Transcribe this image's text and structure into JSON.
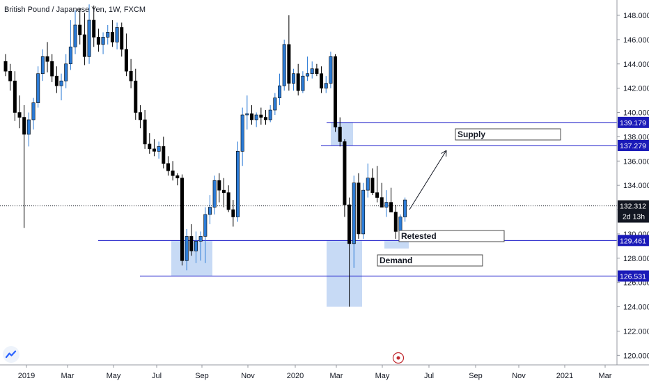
{
  "header": {
    "symbol": "British Pound / Japanese Yen",
    "interval": "1W",
    "exchange": "FXCM"
  },
  "colors": {
    "up_candle": "#2b7bd6",
    "down_candle": "#000000",
    "zone_fill": "#b9d1f3",
    "level_line": "#1818c8",
    "level_tag_bg": "#1a1ab8",
    "price_tag_bg": "#131722",
    "alert_color": "#c0272d"
  },
  "icons": {
    "logo": "tradingview-logo-icon",
    "alert": "alert-clock-icon"
  },
  "chart_data": {
    "type": "candlestick",
    "title": "British Pound / Japanese Yen, 1W, FXCM",
    "ylim": [
      119.4,
      149.3
    ],
    "y_ticks": [
      120,
      122,
      124,
      126,
      128,
      130,
      132,
      134,
      136,
      138,
      140,
      142,
      144,
      146,
      148
    ],
    "y_tick_labels": [
      "120.000",
      "122.000",
      "124.000",
      "126.000",
      "128.000",
      "130.000",
      "132.000",
      "134.000",
      "136.000",
      "138.000",
      "140.000",
      "142.000",
      "144.000",
      "146.000",
      "148.000"
    ],
    "x_labels": [
      "2019",
      "Mar",
      "May",
      "Jul",
      "Sep",
      "Nov",
      "2020",
      "Mar",
      "May",
      "Jul",
      "Sep",
      "Nov",
      "2021",
      "Mar"
    ],
    "candles": [
      [
        144.2,
        144.8,
        143.0,
        143.4
      ],
      [
        143.4,
        144.0,
        141.8,
        142.6
      ],
      [
        142.6,
        143.4,
        139.3,
        140.0
      ],
      [
        140.0,
        141.4,
        138.7,
        139.6
      ],
      [
        139.6,
        140.6,
        130.5,
        138.2
      ],
      [
        138.2,
        140.0,
        137.2,
        139.4
      ],
      [
        139.4,
        141.2,
        138.6,
        140.8
      ],
      [
        140.8,
        143.8,
        140.4,
        143.2
      ],
      [
        143.2,
        145.2,
        142.6,
        144.6
      ],
      [
        144.6,
        145.8,
        143.3,
        144.2
      ],
      [
        144.2,
        144.8,
        142.5,
        143.0
      ],
      [
        143.0,
        143.8,
        141.6,
        142.2
      ],
      [
        142.2,
        143.2,
        141.0,
        142.6
      ],
      [
        142.6,
        144.8,
        142.0,
        144.0
      ],
      [
        144.0,
        147.6,
        143.5,
        145.4
      ],
      [
        145.4,
        148.4,
        144.8,
        147.2
      ],
      [
        147.2,
        148.6,
        145.6,
        146.4
      ],
      [
        146.4,
        148.2,
        143.9,
        144.6
      ],
      [
        144.6,
        148.9,
        144.0,
        147.6
      ],
      [
        147.6,
        148.8,
        145.4,
        146.2
      ],
      [
        146.2,
        146.9,
        145.0,
        145.6
      ],
      [
        145.6,
        146.6,
        144.8,
        146.2
      ],
      [
        146.2,
        147.2,
        145.6,
        146.6
      ],
      [
        146.6,
        147.6,
        145.4,
        145.8
      ],
      [
        145.8,
        147.4,
        145.2,
        147.0
      ],
      [
        147.0,
        147.4,
        144.6,
        145.2
      ],
      [
        145.2,
        146.5,
        143.0,
        143.4
      ],
      [
        143.4,
        144.4,
        142.0,
        142.6
      ],
      [
        142.6,
        143.6,
        139.4,
        140.0
      ],
      [
        140.0,
        140.6,
        138.7,
        139.4
      ],
      [
        139.4,
        140.2,
        137.0,
        137.4
      ],
      [
        137.4,
        138.3,
        136.6,
        137.0
      ],
      [
        137.0,
        137.8,
        136.4,
        136.8
      ],
      [
        136.8,
        137.6,
        136.2,
        137.2
      ],
      [
        137.2,
        138.0,
        135.4,
        135.8
      ],
      [
        135.8,
        136.4,
        134.8,
        135.2
      ],
      [
        135.2,
        136.0,
        134.4,
        134.8
      ],
      [
        134.8,
        135.0,
        134.0,
        134.6
      ],
      [
        134.6,
        134.9,
        127.4,
        127.8
      ],
      [
        127.8,
        130.4,
        127.0,
        129.8
      ],
      [
        129.8,
        130.8,
        128.2,
        128.6
      ],
      [
        128.6,
        130.2,
        127.6,
        129.4
      ],
      [
        129.4,
        130.2,
        127.8,
        129.8
      ],
      [
        129.8,
        132.2,
        127.6,
        131.6
      ],
      [
        131.6,
        133.2,
        130.8,
        132.2
      ],
      [
        132.2,
        134.8,
        131.6,
        134.4
      ],
      [
        134.4,
        135.0,
        132.6,
        133.6
      ],
      [
        133.6,
        134.6,
        132.2,
        133.4
      ],
      [
        133.4,
        134.0,
        131.8,
        132.0
      ],
      [
        132.0,
        132.8,
        130.6,
        131.4
      ],
      [
        131.4,
        137.6,
        131.0,
        136.8
      ],
      [
        136.8,
        140.4,
        135.6,
        139.8
      ],
      [
        139.8,
        141.4,
        138.6,
        139.9
      ],
      [
        139.9,
        140.6,
        139.0,
        139.4
      ],
      [
        139.4,
        140.0,
        138.8,
        139.8
      ],
      [
        139.8,
        140.4,
        139.0,
        139.6
      ],
      [
        139.6,
        140.2,
        139.0,
        139.4
      ],
      [
        139.4,
        140.6,
        139.2,
        140.2
      ],
      [
        140.2,
        141.6,
        139.8,
        141.2
      ],
      [
        141.2,
        143.2,
        140.6,
        142.2
      ],
      [
        142.2,
        146.0,
        141.8,
        145.6
      ],
      [
        145.6,
        148.0,
        141.8,
        142.4
      ],
      [
        142.4,
        143.6,
        141.8,
        143.2
      ],
      [
        143.2,
        144.0,
        141.4,
        141.8
      ],
      [
        141.8,
        143.4,
        141.6,
        143.0
      ],
      [
        143.0,
        144.6,
        142.6,
        143.2
      ],
      [
        143.2,
        144.2,
        142.8,
        143.6
      ],
      [
        143.6,
        144.0,
        143.0,
        143.2
      ],
      [
        143.2,
        143.8,
        141.6,
        142.0
      ],
      [
        142.0,
        143.0,
        141.6,
        142.4
      ],
      [
        142.4,
        145.0,
        142.0,
        144.6
      ],
      [
        144.6,
        144.8,
        138.4,
        138.8
      ],
      [
        138.8,
        139.6,
        137.2,
        137.6
      ],
      [
        137.6,
        137.8,
        131.4,
        132.4
      ],
      [
        132.4,
        133.0,
        124.0,
        129.2
      ],
      [
        129.2,
        134.8,
        127.2,
        134.2
      ],
      [
        134.2,
        135.0,
        129.6,
        130.0
      ],
      [
        130.0,
        134.2,
        129.6,
        133.6
      ],
      [
        133.6,
        135.8,
        133.0,
        134.6
      ],
      [
        134.6,
        135.4,
        133.2,
        133.4
      ],
      [
        133.4,
        135.6,
        132.6,
        133.0
      ],
      [
        133.0,
        134.2,
        132.2,
        132.2
      ],
      [
        132.2,
        133.6,
        131.4,
        132.6
      ],
      [
        132.6,
        133.8,
        131.8,
        131.8
      ],
      [
        131.8,
        132.4,
        129.6,
        130.2
      ],
      [
        130.2,
        131.6,
        129.4,
        131.4
      ],
      [
        131.4,
        133.0,
        131.0,
        132.8
      ]
    ],
    "levels": [
      {
        "price": 139.179,
        "label": "139.179"
      },
      {
        "price": 137.279,
        "label": "137.279"
      },
      {
        "price": 129.461,
        "label": "129.461"
      },
      {
        "price": 126.531,
        "label": "126.531"
      }
    ],
    "current_price": {
      "price": 132.312,
      "label": "132.312",
      "countdown": "2d 13h"
    },
    "annotations": [
      {
        "text": "Supply"
      },
      {
        "text": "Retested"
      },
      {
        "text": "Demand"
      }
    ]
  }
}
